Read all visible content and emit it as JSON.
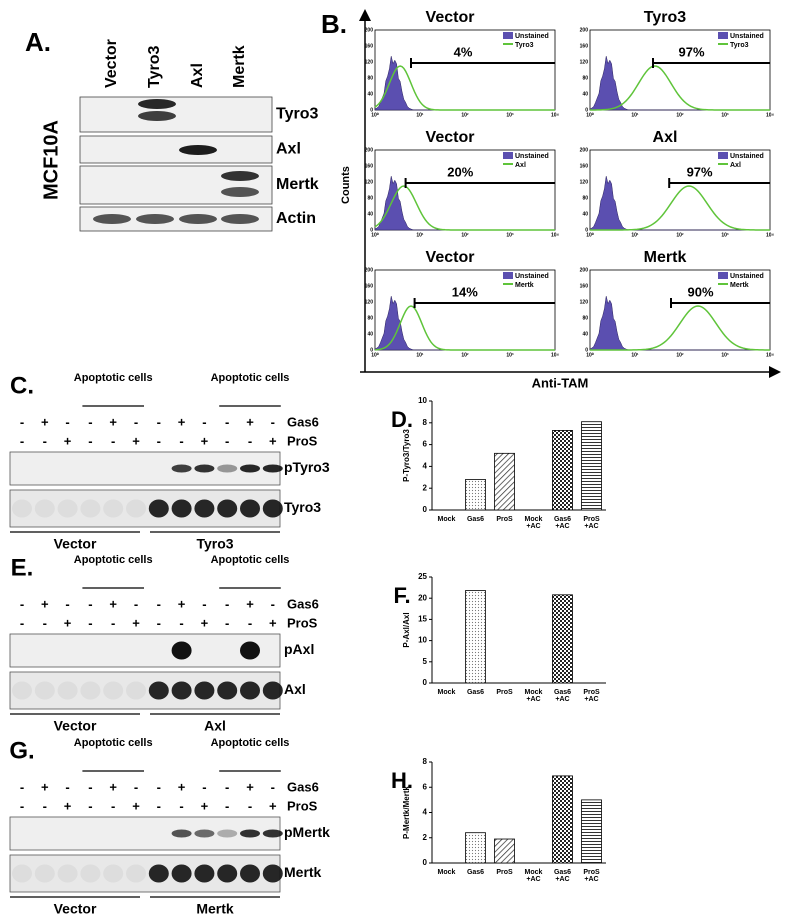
{
  "panel_a": {
    "label": "A.",
    "cell_line": "MCF10A",
    "lanes": [
      "Vector",
      "Tyro3",
      "Axl",
      "Mertk"
    ],
    "rows": [
      "Tyro3",
      "Axl",
      "Mertk",
      "Actin"
    ]
  },
  "panel_b": {
    "label": "B.",
    "y_label": "Counts",
    "x_label": "Anti-TAM",
    "yticks": [
      0,
      40,
      80,
      120,
      160,
      200
    ],
    "xtick_labels": [
      "10⁰",
      "10¹",
      "10²",
      "10³",
      "10⁴"
    ],
    "histograms": [
      {
        "title": "Vector",
        "legend": [
          "Unstained",
          "Tyro3"
        ],
        "gate": "4%"
      },
      {
        "title": "Tyro3",
        "legend": [
          "Unstained",
          "Tyro3"
        ],
        "gate": "97%"
      },
      {
        "title": "Vector",
        "legend": [
          "Unstained",
          "Axl"
        ],
        "gate": "20%"
      },
      {
        "title": "Axl",
        "legend": [
          "Unstained",
          "Axl"
        ],
        "gate": "97%"
      },
      {
        "title": "Vector",
        "legend": [
          "Unstained",
          "Mertk"
        ],
        "gate": "14%"
      },
      {
        "title": "Mertk",
        "legend": [
          "Unstained",
          "Mertk"
        ],
        "gate": "90%"
      }
    ]
  },
  "blot_panels": [
    {
      "label": "C.",
      "apoptotic_label": "Apoptotic cells",
      "treatments": [
        {
          "name": "Gas6",
          "signs": [
            "-",
            "+",
            "-",
            "-",
            "+",
            "-",
            "-",
            "+",
            "-",
            "-",
            "+",
            "-"
          ]
        },
        {
          "name": "ProS",
          "signs": [
            "-",
            "-",
            "+",
            "-",
            "-",
            "+",
            "-",
            "-",
            "+",
            "-",
            "-",
            "+"
          ]
        }
      ],
      "blots": [
        "pTyro3",
        "Tyro3"
      ],
      "groups": [
        "Vector",
        "Tyro3"
      ]
    },
    {
      "label": "E.",
      "apoptotic_label": "Apoptotic cells",
      "treatments": [
        {
          "name": "Gas6",
          "signs": [
            "-",
            "+",
            "-",
            "-",
            "+",
            "-",
            "-",
            "+",
            "-",
            "-",
            "+",
            "-"
          ]
        },
        {
          "name": "ProS",
          "signs": [
            "-",
            "-",
            "+",
            "-",
            "-",
            "+",
            "-",
            "-",
            "+",
            "-",
            "-",
            "+"
          ]
        }
      ],
      "blots": [
        "pAxl",
        "Axl"
      ],
      "groups": [
        "Vector",
        "Axl"
      ]
    },
    {
      "label": "G.",
      "apoptotic_label": "Apoptotic cells",
      "treatments": [
        {
          "name": "Gas6",
          "signs": [
            "-",
            "+",
            "-",
            "-",
            "+",
            "-",
            "-",
            "+",
            "-",
            "-",
            "+",
            "-"
          ]
        },
        {
          "name": "ProS",
          "signs": [
            "-",
            "-",
            "+",
            "-",
            "-",
            "+",
            "-",
            "-",
            "+",
            "-",
            "-",
            "+"
          ]
        }
      ],
      "blots": [
        "pMertk",
        "Mertk"
      ],
      "groups": [
        "Vector",
        "Mertk"
      ]
    }
  ],
  "chart_data": [
    {
      "type": "bar",
      "panel_label": "D.",
      "y_label": "P-Tyro3/Tyro3",
      "categories": [
        "Mock",
        "Gas6",
        "ProS",
        "Mock\n+AC",
        "Gas6\n+AC",
        "ProS\n+AC"
      ],
      "values": [
        0,
        2.8,
        5.2,
        0,
        7.3,
        8.1
      ],
      "ylim": [
        0,
        10
      ],
      "yticks": [
        0,
        2,
        4,
        6,
        8,
        10
      ]
    },
    {
      "type": "bar",
      "panel_label": "F.",
      "y_label": "P-Axl/Axl",
      "categories": [
        "Mock",
        "Gas6",
        "ProS",
        "Mock\n+AC",
        "Gas6\n+AC",
        "ProS\n+AC"
      ],
      "values": [
        0,
        21.8,
        0,
        0,
        20.8,
        0
      ],
      "ylim": [
        0,
        25
      ],
      "yticks": [
        0,
        5,
        10,
        15,
        20,
        25
      ]
    },
    {
      "type": "bar",
      "panel_label": "H.",
      "y_label": "P-Mertk/Mertk",
      "categories": [
        "Mock",
        "Gas6",
        "ProS",
        "Mock\n+AC",
        "Gas6\n+AC",
        "ProS\n+AC"
      ],
      "values": [
        0,
        2.4,
        1.9,
        0,
        6.9,
        5.0
      ],
      "ylim": [
        0,
        8
      ],
      "yticks": [
        0,
        2,
        4,
        6,
        8
      ]
    }
  ]
}
